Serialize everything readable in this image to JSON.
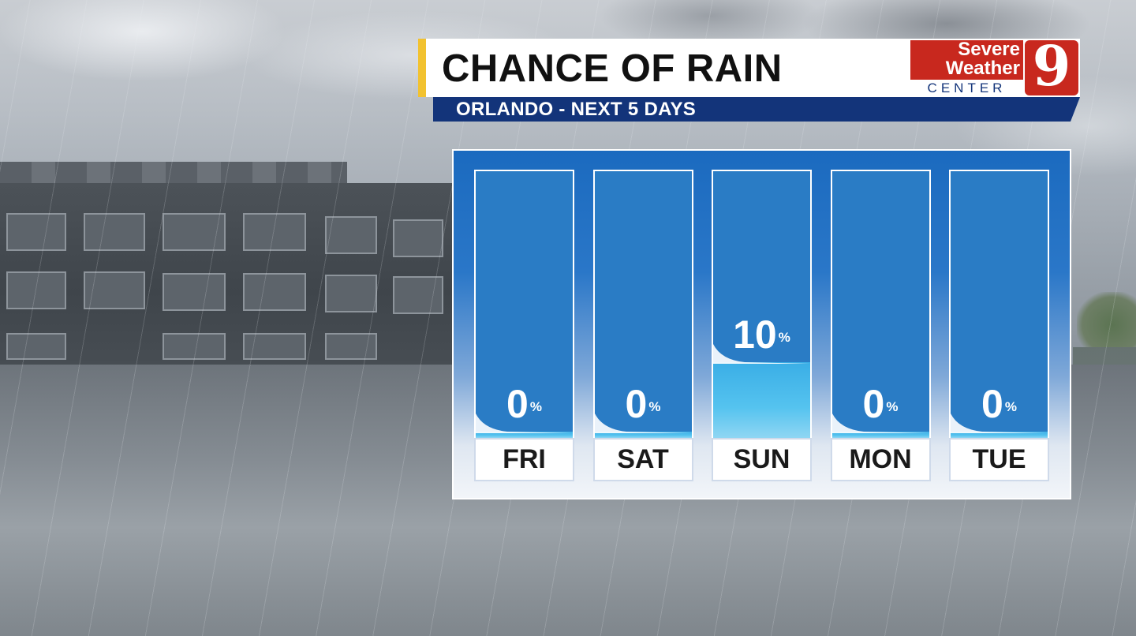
{
  "header": {
    "title": "CHANCE OF RAIN",
    "subtitle": "ORLANDO - NEXT 5 DAYS"
  },
  "logo": {
    "line1": "Severe",
    "line2": "Weather",
    "line3": "CENTER",
    "number": "9"
  },
  "colors": {
    "panel_blue": "#2a7cc5",
    "header_navy": "#13347a",
    "accent_yellow": "#f2c230",
    "brand_red": "#c8281e",
    "water": "#3aaee6"
  },
  "chart_data": {
    "type": "bar",
    "title": "CHANCE OF RAIN",
    "subtitle": "ORLANDO - NEXT 5 DAYS",
    "categories": [
      "FRI",
      "SAT",
      "SUN",
      "MON",
      "TUE"
    ],
    "values": [
      0,
      0,
      10,
      0,
      0
    ],
    "unit": "%",
    "ylim": [
      0,
      100
    ]
  }
}
